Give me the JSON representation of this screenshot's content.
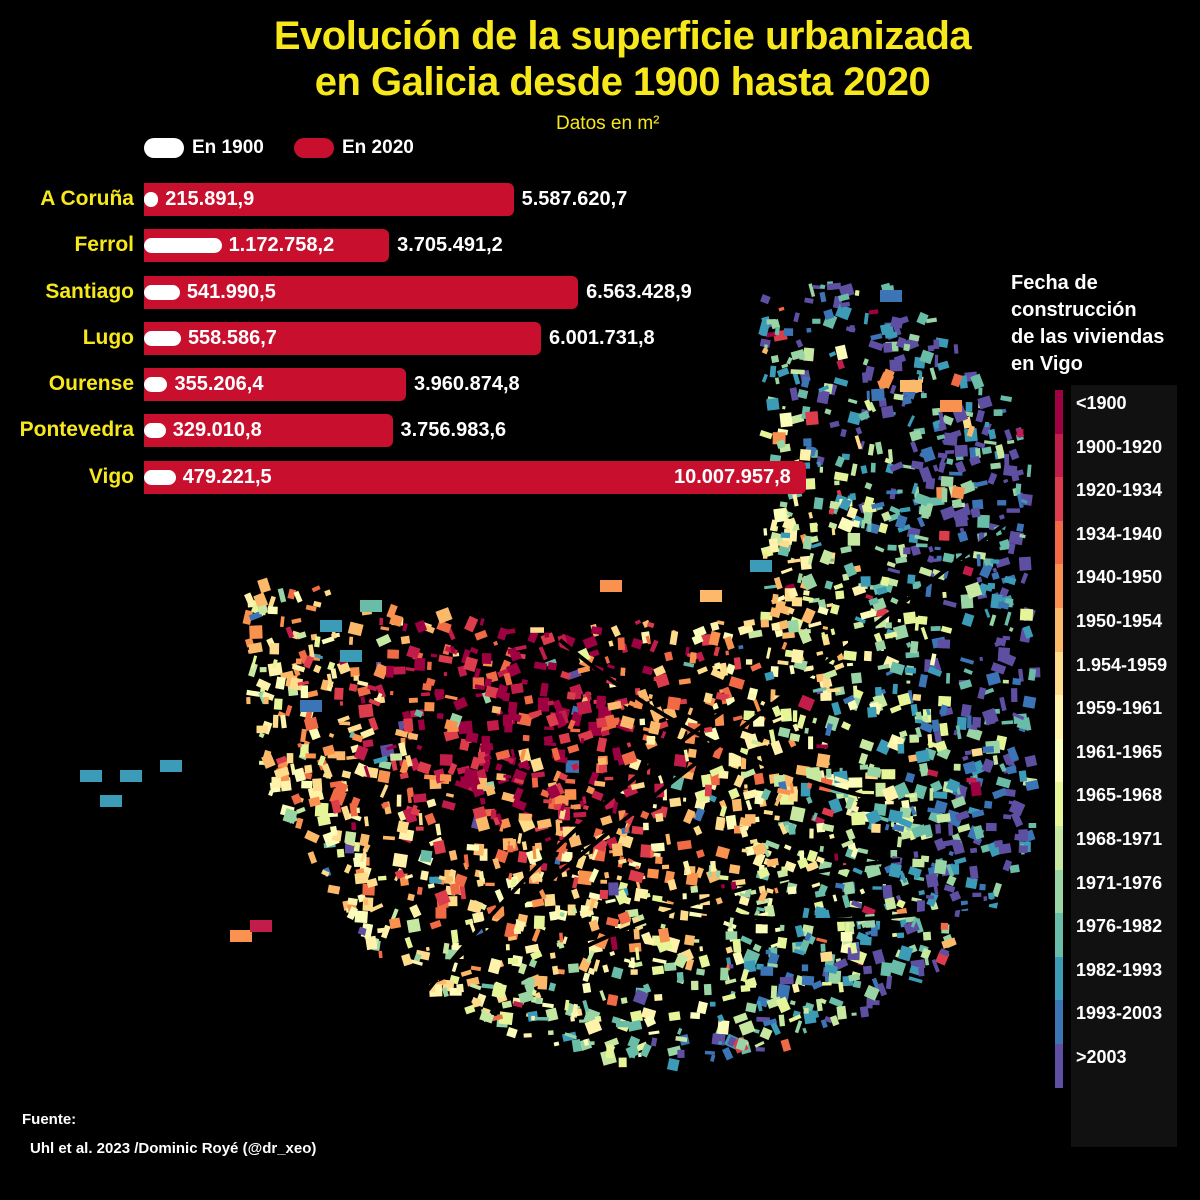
{
  "title_line1": "Evolución de la superficie urbanizada",
  "title_line2": "en Galicia desde 1900 hasta 2020",
  "subtitle": "Datos en m²",
  "legend": [
    {
      "label": "En 1900",
      "color": "#ffffff"
    },
    {
      "label": "En 2020",
      "color": "#c8102e"
    }
  ],
  "chart_data": {
    "type": "bar",
    "categories": [
      "A Coruña",
      "Ferrol",
      "Santiago",
      "Lugo",
      "Ourense",
      "Pontevedra",
      "Vigo"
    ],
    "series": [
      {
        "name": "En 1900",
        "values": [
          215891.9,
          1172758.2,
          541990.5,
          558586.7,
          355206.4,
          329010.8,
          479221.5
        ],
        "labels": [
          "215.891,9",
          "1.172.758,2",
          "541.990,5",
          "558.586,7",
          "355.206,4",
          "329.010,8",
          "479.221,5"
        ]
      },
      {
        "name": "En 2020",
        "values": [
          5587620.7,
          3705491.2,
          6563428.9,
          6001731.8,
          3960874.8,
          3756983.6,
          10007957.8
        ],
        "labels": [
          "5.587.620,7",
          "3.705.491,2",
          "6.563.428,9",
          "6.001.731,8",
          "3.960.874,8",
          "3.756.983,6",
          "10.007.957,8"
        ]
      }
    ],
    "orientation": "horizontal",
    "xlim": [
      0,
      10007957.8
    ],
    "grid": false,
    "legend_position": "top-left"
  },
  "map": {
    "scale_title": [
      "Fecha de",
      "construcción",
      "de las viviendas",
      "en Vigo"
    ],
    "scale": [
      {
        "label": "<1900",
        "color": "#9e0142"
      },
      {
        "label": "1900-1920",
        "color": "#c21c4b"
      },
      {
        "label": "1920-1934",
        "color": "#dc3c4b"
      },
      {
        "label": "1934-1940",
        "color": "#ef6a45"
      },
      {
        "label": "1940-1950",
        "color": "#f9914f"
      },
      {
        "label": "1950-1954",
        "color": "#fdb96a"
      },
      {
        "label": "1.954-1959",
        "color": "#fedc8c"
      },
      {
        "label": "1959-1961",
        "color": "#fff3ac"
      },
      {
        "label": "1961-1965",
        "color": "#fbfdba"
      },
      {
        "label": "1965-1968",
        "color": "#e6f598"
      },
      {
        "label": "1968-1971",
        "color": "#c6e8a1"
      },
      {
        "label": "1971-1976",
        "color": "#99d5a4"
      },
      {
        "label": "1976-1982",
        "color": "#69bca8"
      },
      {
        "label": "1982-1993",
        "color": "#3c9cb8"
      },
      {
        "label": "1993-2003",
        "color": "#3c75b5"
      },
      {
        "label": ">2003",
        "color": "#5e4fa2"
      }
    ]
  },
  "source": {
    "heading": "Fuente:",
    "text": "Uhl et al. 2023 /Dominic Royé (@dr_xeo)"
  }
}
